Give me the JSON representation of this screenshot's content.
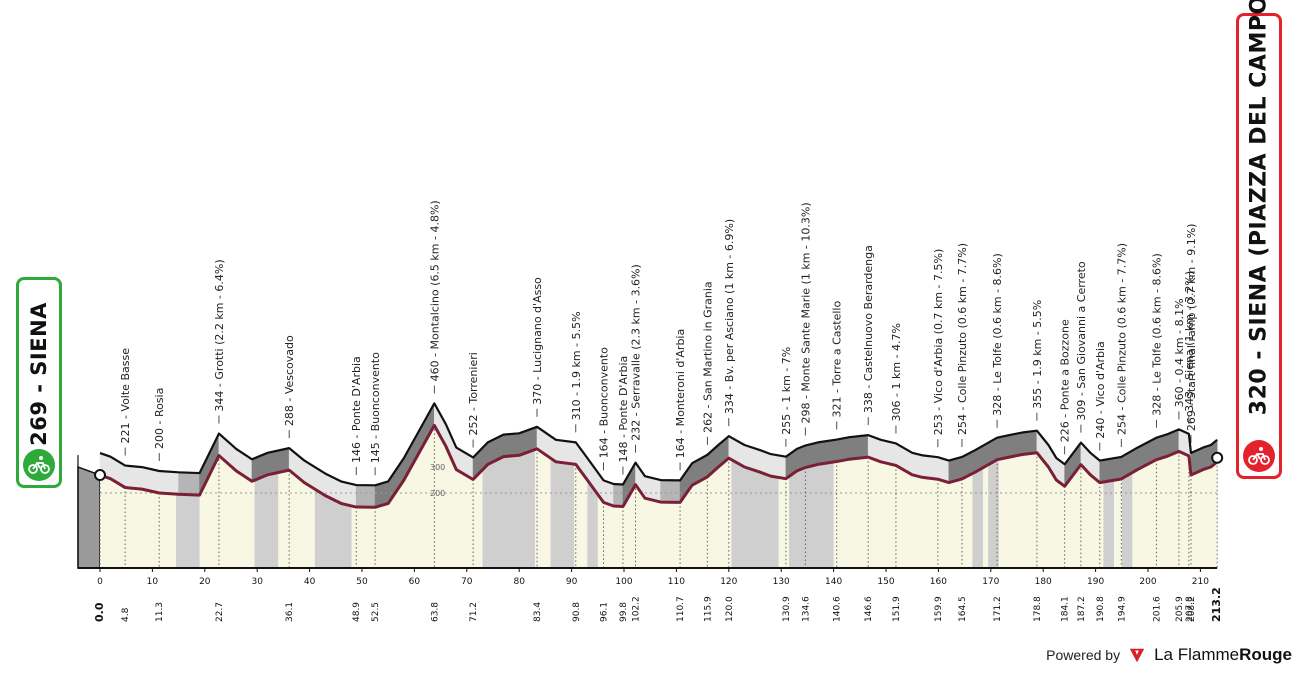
{
  "start": {
    "altitude": "269",
    "name": "SIENA"
  },
  "finish": {
    "altitude": "320",
    "name": "SIENA (PIAZZA DEL CAMPO)"
  },
  "branding": {
    "powered_by": "Powered by",
    "brand_part1": "La Flamme",
    "brand_part2": "Rouge"
  },
  "colors": {
    "profile_line": "#7a1f35",
    "start": "#2eaa3a",
    "finish": "#e3222b",
    "shade_dark": "#7f7f7f",
    "shade_light": "#e6e6e6",
    "gravel": "#cfcfcf",
    "paved_fill": "#f7f7e4"
  },
  "chart_data": {
    "type": "area",
    "xlim": [
      0,
      213.2
    ],
    "x_ticks": [
      0,
      10,
      20,
      30,
      40,
      50,
      60,
      70,
      80,
      90,
      100,
      110,
      120,
      130,
      140,
      150,
      160,
      170,
      180,
      190,
      200,
      210
    ],
    "y_gridline": 200,
    "y_gridline_label": "200",
    "extra_y_label": "300",
    "km_marks": [
      "0.0",
      "4.8",
      "11.3",
      "22.7",
      "36.1",
      "48.9",
      "52.5",
      "63.8",
      "71.2",
      "83.4",
      "90.8",
      "96.1",
      "99.8",
      "102.2",
      "110.7",
      "115.9",
      "120.0",
      "130.9",
      "134.6",
      "140.6",
      "146.6",
      "151.9",
      "159.9",
      "164.5",
      "171.2",
      "178.8",
      "184.1",
      "187.2",
      "190.8",
      "194.9",
      "201.6",
      "205.9",
      "207.8",
      "208.2",
      "213.2"
    ],
    "gravel_sectors": [
      [
        14.5,
        19
      ],
      [
        29.5,
        34
      ],
      [
        41,
        48
      ],
      [
        73,
        83
      ],
      [
        86,
        90.5
      ],
      [
        93,
        95
      ],
      [
        120.5,
        129.5
      ],
      [
        131.5,
        140
      ],
      [
        166.5,
        168.5
      ],
      [
        169.5,
        171.5
      ],
      [
        191.5,
        193.5
      ],
      [
        195,
        197
      ]
    ],
    "profile": [
      {
        "km": 0,
        "alt": 269
      },
      {
        "km": 2,
        "alt": 255
      },
      {
        "km": 4.8,
        "alt": 221
      },
      {
        "km": 8,
        "alt": 215
      },
      {
        "km": 11.3,
        "alt": 200
      },
      {
        "km": 15,
        "alt": 195
      },
      {
        "km": 19,
        "alt": 192
      },
      {
        "km": 22.7,
        "alt": 344
      },
      {
        "km": 26,
        "alt": 285
      },
      {
        "km": 29,
        "alt": 245
      },
      {
        "km": 32,
        "alt": 270
      },
      {
        "km": 36.1,
        "alt": 288
      },
      {
        "km": 39,
        "alt": 240
      },
      {
        "km": 43,
        "alt": 190
      },
      {
        "km": 46,
        "alt": 160
      },
      {
        "km": 48.9,
        "alt": 146
      },
      {
        "km": 52.5,
        "alt": 145
      },
      {
        "km": 55,
        "alt": 160
      },
      {
        "km": 58,
        "alt": 250
      },
      {
        "km": 63.8,
        "alt": 460
      },
      {
        "km": 66,
        "alt": 380
      },
      {
        "km": 68,
        "alt": 290
      },
      {
        "km": 71.2,
        "alt": 252
      },
      {
        "km": 74,
        "alt": 310
      },
      {
        "km": 77,
        "alt": 340
      },
      {
        "km": 80,
        "alt": 345
      },
      {
        "km": 83.4,
        "alt": 370
      },
      {
        "km": 87,
        "alt": 320
      },
      {
        "km": 90.8,
        "alt": 310
      },
      {
        "km": 93,
        "alt": 250
      },
      {
        "km": 96.1,
        "alt": 164
      },
      {
        "km": 98,
        "alt": 150
      },
      {
        "km": 99.8,
        "alt": 148
      },
      {
        "km": 102.2,
        "alt": 232
      },
      {
        "km": 104,
        "alt": 180
      },
      {
        "km": 107,
        "alt": 165
      },
      {
        "km": 110.7,
        "alt": 164
      },
      {
        "km": 113,
        "alt": 230
      },
      {
        "km": 115.9,
        "alt": 262
      },
      {
        "km": 118,
        "alt": 300
      },
      {
        "km": 120,
        "alt": 334
      },
      {
        "km": 123,
        "alt": 300
      },
      {
        "km": 126,
        "alt": 280
      },
      {
        "km": 128,
        "alt": 265
      },
      {
        "km": 130.9,
        "alt": 255
      },
      {
        "km": 133,
        "alt": 285
      },
      {
        "km": 134.6,
        "alt": 298
      },
      {
        "km": 137,
        "alt": 310
      },
      {
        "km": 140.6,
        "alt": 321
      },
      {
        "km": 143,
        "alt": 330
      },
      {
        "km": 146.6,
        "alt": 338
      },
      {
        "km": 149,
        "alt": 320
      },
      {
        "km": 151.9,
        "alt": 306
      },
      {
        "km": 155,
        "alt": 270
      },
      {
        "km": 157,
        "alt": 260
      },
      {
        "km": 159.9,
        "alt": 253
      },
      {
        "km": 162,
        "alt": 240
      },
      {
        "km": 164.5,
        "alt": 254
      },
      {
        "km": 167,
        "alt": 280
      },
      {
        "km": 171.2,
        "alt": 328
      },
      {
        "km": 174,
        "alt": 340
      },
      {
        "km": 176,
        "alt": 348
      },
      {
        "km": 178.8,
        "alt": 355
      },
      {
        "km": 181,
        "alt": 300
      },
      {
        "km": 182.5,
        "alt": 250
      },
      {
        "km": 184.1,
        "alt": 226
      },
      {
        "km": 187.2,
        "alt": 309
      },
      {
        "km": 189,
        "alt": 270
      },
      {
        "km": 190.8,
        "alt": 240
      },
      {
        "km": 194.9,
        "alt": 254
      },
      {
        "km": 198,
        "alt": 290
      },
      {
        "km": 201.6,
        "alt": 328
      },
      {
        "km": 203.5,
        "alt": 340
      },
      {
        "km": 205.9,
        "alt": 360
      },
      {
        "km": 207.8,
        "alt": 343
      },
      {
        "km": 208.2,
        "alt": 269
      },
      {
        "km": 210.5,
        "alt": 290
      },
      {
        "km": 212,
        "alt": 300
      },
      {
        "km": 213.2,
        "alt": 320
      }
    ],
    "annotations": [
      {
        "km": 4.8,
        "text": "221 - Volte Basse"
      },
      {
        "km": 11.3,
        "text": "200 - Rosia"
      },
      {
        "km": 22.7,
        "text": "344 - Grotti (2.2 km - 6.4%)"
      },
      {
        "km": 36.1,
        "text": "288 - Vescovado"
      },
      {
        "km": 48.9,
        "text": "146 - Ponte D'Arbia"
      },
      {
        "km": 52.5,
        "text": "145 - Buonconvento"
      },
      {
        "km": 63.8,
        "text": "460 - Montalcino (6.5 km - 4.8%)"
      },
      {
        "km": 71.2,
        "text": "252 - Torrenieri"
      },
      {
        "km": 83.4,
        "text": "370 - Lucignano d'Asso"
      },
      {
        "km": 90.8,
        "text": "310 - 1.9 km - 5.5%"
      },
      {
        "km": 96.1,
        "text": "164 - Buonconvento"
      },
      {
        "km": 99.8,
        "text": "148 - Ponte D'Arbia"
      },
      {
        "km": 102.2,
        "text": "232 - Serravalle (2.3 km - 3.6%)"
      },
      {
        "km": 110.7,
        "text": "164 - Monteroni d'Arbia"
      },
      {
        "km": 115.9,
        "text": "262 - San Martino in Grania"
      },
      {
        "km": 120.0,
        "text": "334 - Bv. per Asciano (1 km - 6.9%)"
      },
      {
        "km": 130.9,
        "text": "255 - 1 km - 7%"
      },
      {
        "km": 134.6,
        "text": "298 - Monte Sante Marie (1 km - 10.3%)"
      },
      {
        "km": 140.6,
        "text": "321 - Torre a Castello"
      },
      {
        "km": 146.6,
        "text": "338 - Castelnuovo Berardenga"
      },
      {
        "km": 151.9,
        "text": "306 - 1 km - 4.7%"
      },
      {
        "km": 159.9,
        "text": "253 - Vico d'Arbia (0.7 km - 7.5%)"
      },
      {
        "km": 164.5,
        "text": "254 - Colle Pinzuto (0.6 km - 7.7%)"
      },
      {
        "km": 171.2,
        "text": "328 - Le Tolfe (0.6 km - 8.6%)"
      },
      {
        "km": 178.8,
        "text": "355 - 1.9 km - 5.5%"
      },
      {
        "km": 184.1,
        "text": "226 - Ponte a Bozzone"
      },
      {
        "km": 187.2,
        "text": "309 - San Giovanni a Cerreto"
      },
      {
        "km": 190.8,
        "text": "240 - Vico d'Arbia"
      },
      {
        "km": 194.9,
        "text": "254 - Colle Pinzuto (0.6 km - 7.7%)"
      },
      {
        "km": 201.6,
        "text": "328 - Le Tolfe (0.6 km - 8.6%)"
      },
      {
        "km": 205.9,
        "text": "360 - 0.4 km - 8.1%"
      },
      {
        "km": 207.8,
        "text": "343 - Siena (1 km - 3.2%)"
      },
      {
        "km": 208.2,
        "text": "269 - Start final ramp (0.7 km - 9.1%)"
      }
    ]
  }
}
